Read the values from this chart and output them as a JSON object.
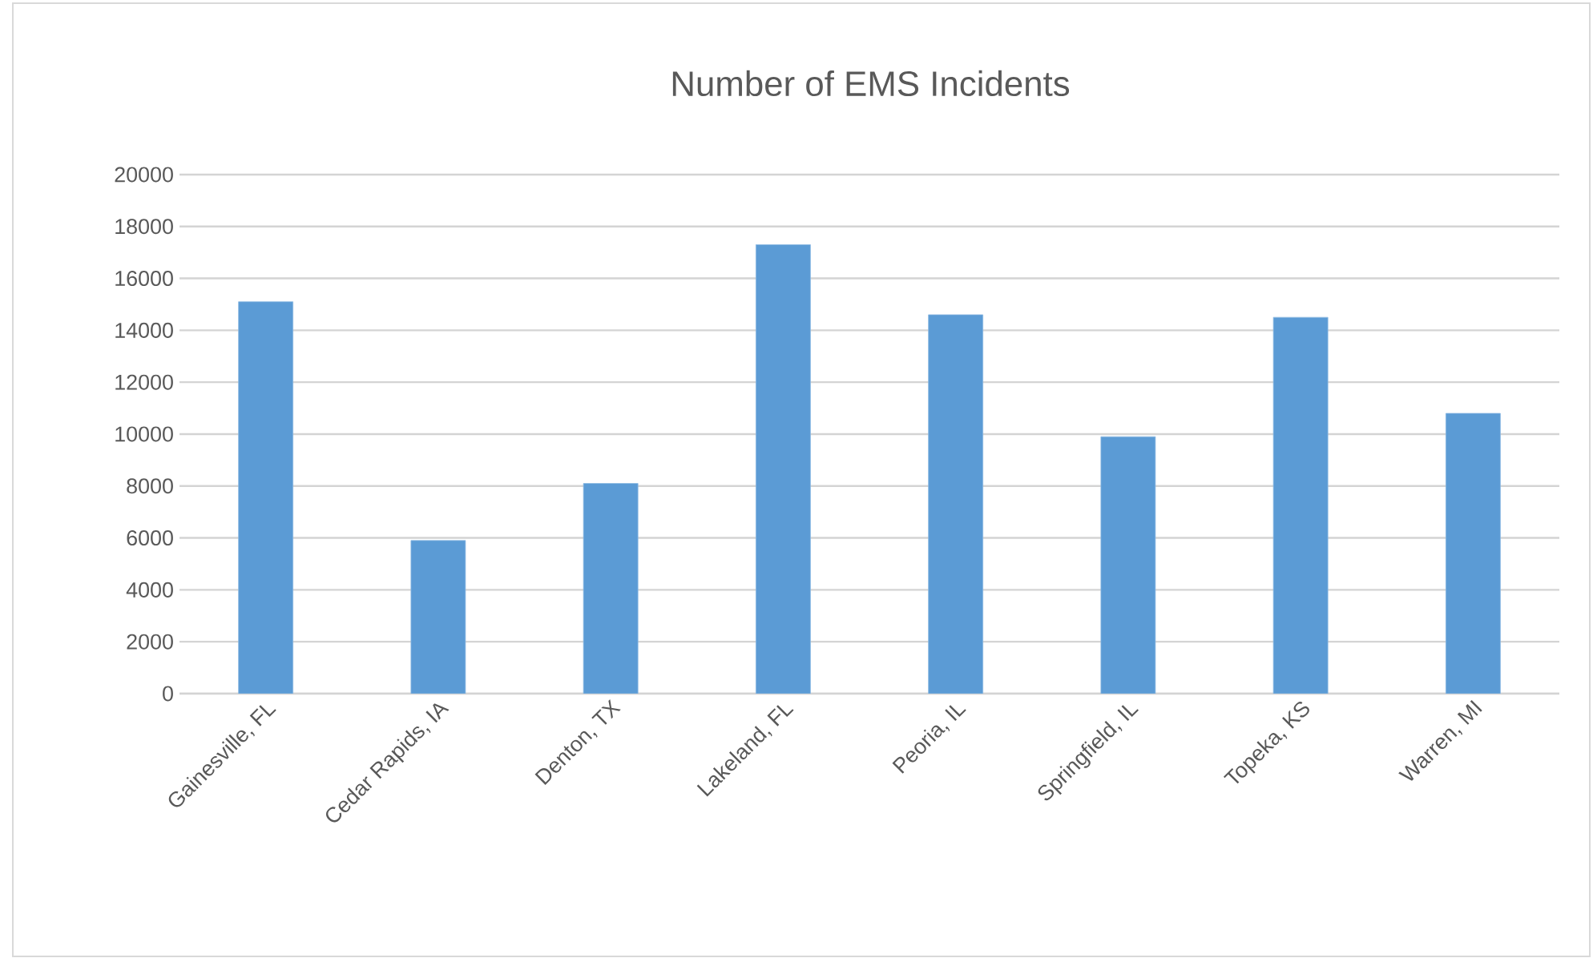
{
  "chart_data": {
    "type": "bar",
    "title": "Number of EMS Incidents",
    "categories": [
      "Gainesville, FL",
      "Cedar Rapids, IA",
      "Denton, TX",
      "Lakeland, FL",
      "Peoria, IL",
      "Springfield, IL",
      "Topeka, KS",
      "Warren, MI"
    ],
    "values": [
      15100,
      5900,
      8100,
      17300,
      14600,
      9900,
      14500,
      10800
    ],
    "color": "#5b9bd5",
    "ylim": [
      0,
      20000
    ],
    "yticks": [
      0,
      2000,
      4000,
      6000,
      8000,
      10000,
      12000,
      14000,
      16000,
      18000,
      20000
    ],
    "grid": "y"
  }
}
